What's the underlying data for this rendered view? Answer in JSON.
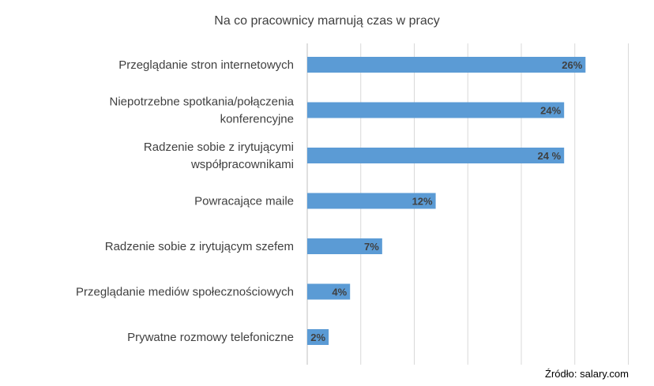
{
  "chart_data": {
    "type": "bar",
    "orientation": "horizontal",
    "title": "Na co pracownicy marnują czas w pracy",
    "categories": [
      [
        "Przeglądanie stron internetowych"
      ],
      [
        "Niepotrzebne spotkania/połączenia",
        "konferencyjne"
      ],
      [
        "Radzenie sobie z irytującymi",
        "współpracownikami"
      ],
      [
        "Powracające maile"
      ],
      [
        "Radzenie sobie z irytującym szefem"
      ],
      [
        "Przeglądanie mediów społecznościowych"
      ],
      [
        "Prywatne rozmowy telefoniczne"
      ]
    ],
    "values": [
      26,
      24,
      24,
      12,
      7,
      4,
      2
    ],
    "value_labels": [
      "26%",
      "24%",
      "24 %",
      "12%",
      "7%",
      "4%",
      "2%"
    ],
    "xlim": [
      0,
      30
    ],
    "grid": true,
    "bar_color": "#5b9bd5"
  },
  "source": "Źródło: salary.com"
}
